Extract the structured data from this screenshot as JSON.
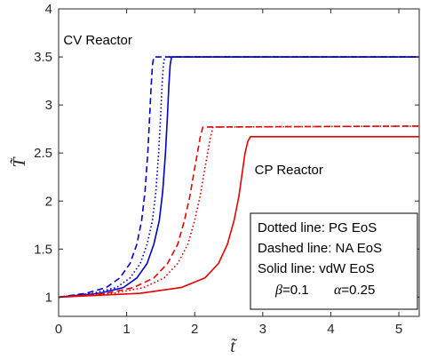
{
  "chart_data": {
    "type": "line",
    "title": "",
    "xlabel": "t̃",
    "ylabel": "T̃",
    "xlim": [
      0,
      5.3
    ],
    "ylim": [
      0.8,
      4
    ],
    "xticks": [
      "0",
      "1",
      "2",
      "3",
      "4",
      "5"
    ],
    "yticks": [
      "1",
      "1.5",
      "2",
      "2.5",
      "3",
      "3.5",
      "4"
    ],
    "grid": false,
    "annotations": [
      {
        "text": "CV Reactor",
        "x": 0.07,
        "y": 3.63
      },
      {
        "text": "CP Reactor",
        "x": 2.88,
        "y": 2.28
      }
    ],
    "legend": {
      "placement": "bottom-right",
      "lines": [
        "Dotted line: PG EoS",
        "Dashed line: NA EoS",
        "Solid line: vdW EoS"
      ],
      "params": [
        {
          "symbol": "β",
          "value": "=0.1"
        },
        {
          "symbol": "α",
          "value": "=0.25"
        }
      ]
    },
    "colors": {
      "cv": "#0000cc",
      "cp": "#e60000"
    },
    "series": [
      {
        "group": "CV",
        "style": "dashed",
        "x": [
          0,
          0.4,
          0.7,
          0.9,
          1.05,
          1.15,
          1.22,
          1.27,
          1.31,
          1.34,
          1.36,
          1.38,
          1.4,
          5.3
        ],
        "y": [
          1.0,
          1.04,
          1.1,
          1.2,
          1.35,
          1.55,
          1.8,
          2.1,
          2.5,
          2.9,
          3.2,
          3.42,
          3.5,
          3.5
        ]
      },
      {
        "group": "CV",
        "style": "dotted",
        "x": [
          0,
          0.5,
          0.85,
          1.05,
          1.2,
          1.3,
          1.38,
          1.43,
          1.47,
          1.5,
          1.52,
          1.54,
          1.56,
          5.3
        ],
        "y": [
          1.0,
          1.04,
          1.1,
          1.2,
          1.35,
          1.55,
          1.8,
          2.1,
          2.5,
          2.9,
          3.2,
          3.42,
          3.5,
          3.5
        ]
      },
      {
        "group": "CV",
        "style": "solid",
        "x": [
          0,
          0.6,
          0.95,
          1.15,
          1.3,
          1.4,
          1.48,
          1.53,
          1.57,
          1.6,
          1.62,
          1.64,
          1.66,
          5.3
        ],
        "y": [
          1.0,
          1.04,
          1.1,
          1.2,
          1.35,
          1.55,
          1.8,
          2.1,
          2.5,
          2.9,
          3.2,
          3.42,
          3.5,
          3.5
        ]
      },
      {
        "group": "CP",
        "style": "dashed",
        "x": [
          0,
          0.7,
          1.1,
          1.4,
          1.6,
          1.75,
          1.85,
          1.93,
          1.99,
          2.04,
          2.08,
          2.12,
          5.3
        ],
        "y": [
          1.0,
          1.04,
          1.1,
          1.2,
          1.35,
          1.55,
          1.8,
          2.05,
          2.3,
          2.5,
          2.66,
          2.77,
          2.78
        ]
      },
      {
        "group": "CP",
        "style": "dotted",
        "x": [
          0,
          0.8,
          1.25,
          1.55,
          1.75,
          1.9,
          2.0,
          2.08,
          2.14,
          2.19,
          2.23,
          2.27,
          5.3
        ],
        "y": [
          1.0,
          1.04,
          1.1,
          1.2,
          1.35,
          1.55,
          1.8,
          2.05,
          2.3,
          2.5,
          2.66,
          2.77,
          2.78
        ]
      },
      {
        "group": "CP",
        "style": "solid",
        "x": [
          0,
          1.2,
          1.8,
          2.15,
          2.35,
          2.48,
          2.58,
          2.65,
          2.7,
          2.74,
          2.78,
          2.82,
          5.3
        ],
        "y": [
          1.0,
          1.04,
          1.1,
          1.2,
          1.35,
          1.55,
          1.8,
          2.05,
          2.3,
          2.5,
          2.62,
          2.67,
          2.67
        ]
      }
    ]
  }
}
